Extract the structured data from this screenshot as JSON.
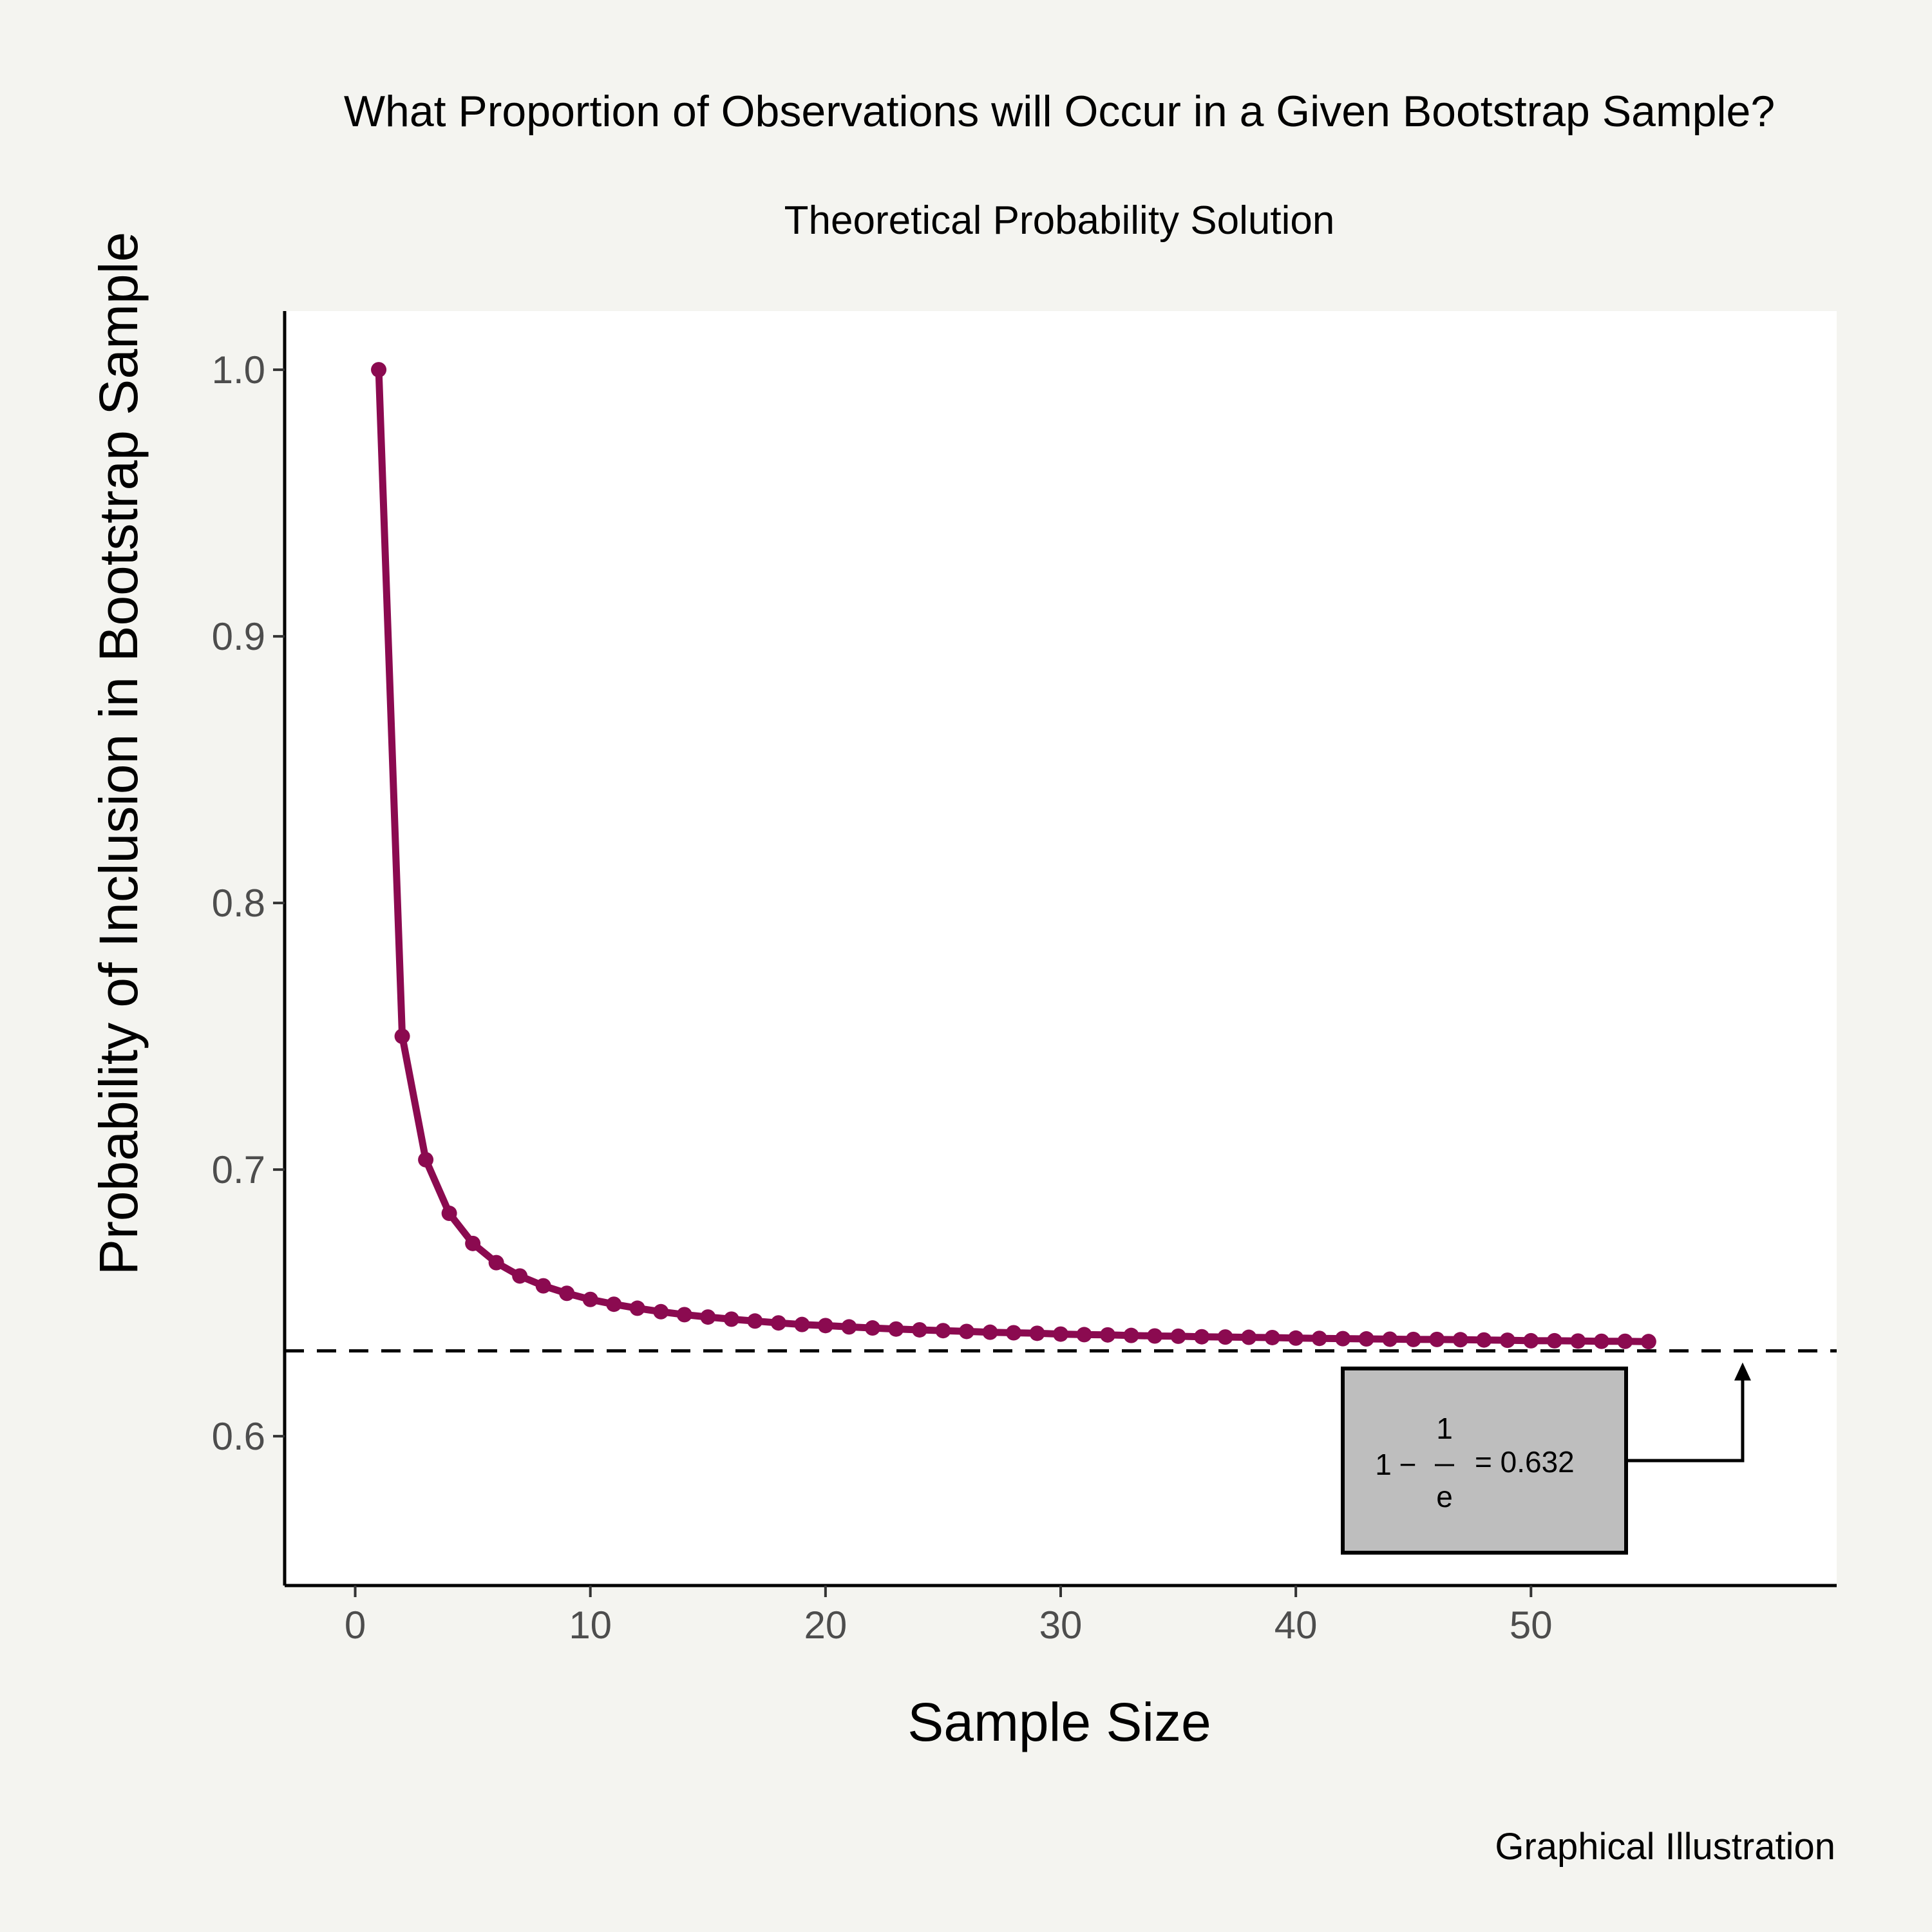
{
  "chart_data": {
    "type": "line",
    "title": "What Proportion of Observations will Occur in a Given Bootstrap Sample?",
    "subtitle": "Theoretical Probability Solution",
    "caption": "Graphical Illustration",
    "xlabel": "Sample Size",
    "ylabel": "Probability of Inclusion in Bootstrap Sample",
    "xlim": [
      -3,
      63
    ],
    "ylim": [
      0.544,
      1.022
    ],
    "xticks": [
      0,
      10,
      20,
      30,
      40,
      50
    ],
    "xtick_labels": [
      "0",
      "10",
      "20",
      "30",
      "40",
      "50"
    ],
    "yticks": [
      0.6,
      0.7,
      0.8,
      0.9,
      1.0
    ],
    "ytick_labels": [
      "0.6",
      "0.7",
      "0.8",
      "0.9",
      "1.0"
    ],
    "grid": false,
    "series": [
      {
        "color": "#8b0a50",
        "x": [
          1,
          2,
          3,
          4,
          5,
          6,
          7,
          8,
          9,
          10,
          11,
          12,
          13,
          14,
          15,
          16,
          17,
          18,
          19,
          20,
          21,
          22,
          23,
          24,
          25,
          26,
          27,
          28,
          29,
          30,
          31,
          32,
          33,
          34,
          35,
          36,
          37,
          38,
          39,
          40,
          41,
          42,
          43,
          44,
          45,
          46,
          47,
          48,
          49,
          50,
          51,
          52,
          53,
          54,
          55
        ],
        "y": [
          1.0,
          0.75,
          0.7037,
          0.6836,
          0.6723,
          0.6651,
          0.6601,
          0.6564,
          0.6536,
          0.6513,
          0.6495,
          0.648,
          0.6467,
          0.6456,
          0.6447,
          0.6439,
          0.6432,
          0.6425,
          0.6419,
          0.6415,
          0.641,
          0.6406,
          0.6402,
          0.6399,
          0.6396,
          0.6393,
          0.639,
          0.6388,
          0.6386,
          0.6383,
          0.6381,
          0.638,
          0.6378,
          0.6376,
          0.6375,
          0.6373,
          0.6372,
          0.6371,
          0.637,
          0.6368,
          0.6367,
          0.6366,
          0.6365,
          0.6364,
          0.6363,
          0.6363,
          0.6362,
          0.6361,
          0.636,
          0.6358,
          0.6358,
          0.6357,
          0.6356,
          0.6356,
          0.6355
        ]
      }
    ],
    "reference_line": {
      "y": 0.632,
      "style": "dashed",
      "color": "#000000"
    },
    "annotation": {
      "one": "1",
      "minus": "−",
      "numerator": "1",
      "denominator": "e",
      "equals": "= 0.632",
      "box_fill": "#bebebe",
      "arrow_target_x": 59,
      "arrow_target_y": 0.632
    }
  }
}
